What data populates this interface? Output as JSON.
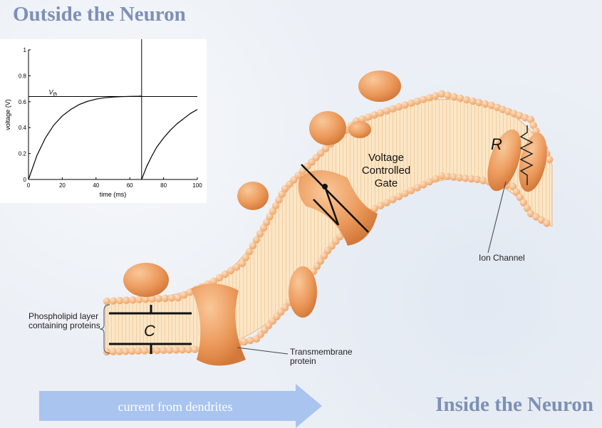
{
  "titles": {
    "outside": "Outside the Neuron",
    "inside": "Inside the Neuron"
  },
  "labels": {
    "phospholipid": "Phospholipid layer containing proteins",
    "transmembrane": "Transmembrane protein",
    "ion_channel": "Ion Channel",
    "gate_line1": "Voltage",
    "gate_line2": "Controlled",
    "gate_line3": "Gate",
    "resistor_symbol": "R",
    "capacitor_symbol": "C"
  },
  "arrow": {
    "text": "current from dendrites",
    "color": "#a8c4ef"
  },
  "colors": {
    "title": "#7d90b6",
    "lipid_head": "#f2b27c",
    "protein": "#ec9a5c",
    "membrane_core": "#fbe6c6"
  },
  "chart_data": {
    "type": "line",
    "title": "",
    "xlabel": "time (ms)",
    "ylabel": "voltage (V)",
    "xlim": [
      0,
      100
    ],
    "ylim": [
      0,
      1
    ],
    "xticks": [
      0,
      20,
      40,
      60,
      80,
      100
    ],
    "yticks": [
      0,
      0.2,
      0.4,
      0.6,
      0.8,
      1
    ],
    "threshold": {
      "label": "V",
      "subscript": "th",
      "value": 0.64
    },
    "spike_time": 67,
    "series": [
      {
        "x": [
          0,
          5,
          10,
          15,
          20,
          25,
          30,
          35,
          40,
          45,
          50,
          55,
          60,
          65,
          67
        ],
        "y": [
          0,
          0.185,
          0.32,
          0.42,
          0.49,
          0.54,
          0.578,
          0.603,
          0.62,
          0.63,
          0.636,
          0.639,
          0.641,
          0.642,
          0.643
        ]
      },
      {
        "x": [
          67,
          70,
          73,
          76,
          80,
          84,
          88,
          92,
          96,
          100
        ],
        "y": [
          0,
          0.1,
          0.18,
          0.25,
          0.32,
          0.38,
          0.43,
          0.47,
          0.51,
          0.54
        ]
      }
    ]
  }
}
